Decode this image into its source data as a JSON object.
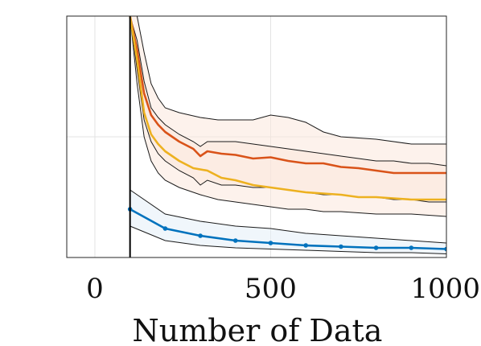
{
  "chart_data": {
    "type": "line",
    "title": "",
    "xlabel": "Number of Data",
    "ylabel": "",
    "xlim": [
      -80,
      1000
    ],
    "ylim": [
      0,
      1
    ],
    "x_ticks": [
      "0",
      "500",
      "1000"
    ],
    "x_tick_values": [
      0,
      500,
      1000
    ],
    "y_tick_values": [
      0.5
    ],
    "grid": true,
    "legend": "none",
    "colors": {
      "blue": "#0072BD",
      "orange": "#D95319",
      "yellow": "#EDB120",
      "band_orange": "#FCE8DC",
      "band_blue": "#E3EEF8",
      "band_edge": "#1a1a1a",
      "vline": "#000000"
    },
    "vline_x": 100,
    "series": [
      {
        "color": "orange",
        "x": [
          100,
          120,
          140,
          160,
          180,
          200,
          240,
          280,
          300,
          320,
          360,
          400,
          450,
          500,
          550,
          600,
          650,
          700,
          750,
          800,
          850,
          900,
          950,
          1000
        ],
        "values": [
          1.0,
          0.86,
          0.68,
          0.59,
          0.55,
          0.52,
          0.48,
          0.45,
          0.42,
          0.44,
          0.43,
          0.425,
          0.41,
          0.415,
          0.4,
          0.39,
          0.39,
          0.375,
          0.37,
          0.36,
          0.35,
          0.35,
          0.35,
          0.35
        ]
      },
      {
        "color": "yellow",
        "x": [
          100,
          120,
          140,
          160,
          180,
          200,
          240,
          280,
          320,
          360,
          400,
          450,
          500,
          550,
          600,
          650,
          700,
          750,
          800,
          850,
          900,
          950,
          1000
        ],
        "values": [
          1.0,
          0.82,
          0.6,
          0.51,
          0.47,
          0.44,
          0.4,
          0.37,
          0.36,
          0.33,
          0.32,
          0.3,
          0.29,
          0.28,
          0.27,
          0.265,
          0.26,
          0.25,
          0.25,
          0.245,
          0.24,
          0.24,
          0.24
        ]
      },
      {
        "color": "blue",
        "markers": true,
        "x": [
          100,
          200,
          300,
          400,
          500,
          600,
          700,
          800,
          900,
          1000
        ],
        "values": [
          0.2,
          0.12,
          0.09,
          0.07,
          0.06,
          0.05,
          0.045,
          0.04,
          0.04,
          0.035
        ]
      }
    ],
    "bands": [
      {
        "color": "band_orange",
        "x": [
          100,
          120,
          140,
          160,
          180,
          200,
          240,
          300,
          350,
          400,
          450,
          500,
          550,
          600,
          650,
          700,
          800,
          900,
          1000
        ],
        "upper": [
          1.0,
          1.0,
          0.85,
          0.72,
          0.66,
          0.62,
          0.6,
          0.58,
          0.57,
          0.57,
          0.57,
          0.59,
          0.58,
          0.56,
          0.52,
          0.5,
          0.49,
          0.47,
          0.47
        ],
        "lower": [
          1.0,
          0.72,
          0.5,
          0.4,
          0.35,
          0.32,
          0.29,
          0.26,
          0.24,
          0.23,
          0.22,
          0.21,
          0.2,
          0.2,
          0.19,
          0.19,
          0.18,
          0.18,
          0.17
        ]
      },
      {
        "color": "band_orange",
        "x": [
          100,
          120,
          140,
          160,
          180,
          200,
          240,
          280,
          300,
          320,
          360,
          400,
          450,
          500,
          550,
          600,
          650,
          700,
          750,
          800,
          850,
          900,
          950,
          1000
        ],
        "upper": [
          1.0,
          0.9,
          0.73,
          0.62,
          0.58,
          0.55,
          0.51,
          0.48,
          0.46,
          0.48,
          0.48,
          0.48,
          0.47,
          0.46,
          0.45,
          0.44,
          0.43,
          0.42,
          0.41,
          0.4,
          0.4,
          0.39,
          0.39,
          0.38
        ],
        "lower": [
          1.0,
          0.78,
          0.57,
          0.48,
          0.43,
          0.4,
          0.36,
          0.33,
          0.3,
          0.32,
          0.3,
          0.3,
          0.29,
          0.29,
          0.28,
          0.27,
          0.26,
          0.26,
          0.25,
          0.25,
          0.24,
          0.24,
          0.23,
          0.23
        ]
      },
      {
        "color": "band_blue",
        "x": [
          100,
          200,
          300,
          400,
          500,
          600,
          700,
          800,
          900,
          1000
        ],
        "upper": [
          0.28,
          0.18,
          0.15,
          0.13,
          0.12,
          0.1,
          0.09,
          0.08,
          0.07,
          0.06
        ],
        "lower": [
          0.13,
          0.07,
          0.05,
          0.04,
          0.035,
          0.03,
          0.025,
          0.02,
          0.02,
          0.015
        ]
      }
    ]
  }
}
